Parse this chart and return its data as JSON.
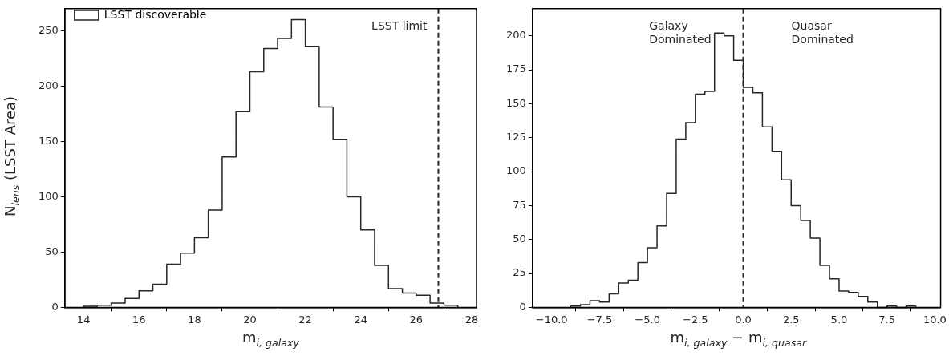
{
  "chart_data": [
    {
      "type": "histogram",
      "xlabel": "m$_{i, galaxy}$",
      "ylabel": "N$_{lens}$ (LSST Area)",
      "bins": [
        14,
        14.5,
        15,
        15.5,
        16,
        16.5,
        17,
        17.5,
        18,
        18.5,
        19,
        19.5,
        20,
        20.5,
        21,
        21.5,
        22,
        22.5,
        23,
        23.5,
        24,
        24.5,
        25,
        25.5,
        26,
        26.5,
        27,
        27.5
      ],
      "series": [
        {
          "name": "LSST discoverable",
          "color": "#262626",
          "values": [
            1,
            2,
            4,
            8,
            15,
            21,
            39,
            49,
            63,
            88,
            136,
            177,
            213,
            234,
            243,
            260,
            236,
            181,
            152,
            100,
            70,
            38,
            17,
            13,
            11,
            4,
            2
          ]
        }
      ],
      "xlim": [
        13.325,
        28.175
      ],
      "xticks": [
        14,
        16,
        18,
        20,
        22,
        24,
        26,
        28
      ],
      "ylim": [
        0,
        270
      ],
      "yticks": [
        0,
        50,
        100,
        150,
        200,
        250
      ],
      "ref_lines": [
        {
          "axis": "x",
          "value": 26.8,
          "label": "LSST limit",
          "color": "#262626",
          "line_style": "dashed"
        }
      ],
      "legend": "top left",
      "grid": false
    },
    {
      "type": "histogram",
      "xlabel": "m$_{i, galaxy}$ − m$_{i, quasar}$",
      "bins": [
        -9,
        -8.5,
        -8,
        -7.5,
        -7,
        -6.5,
        -6,
        -5.5,
        -5,
        -4.5,
        -4,
        -3.5,
        -3,
        -2.5,
        -2,
        -1.5,
        -1,
        -0.5,
        0,
        0.5,
        1,
        1.5,
        2,
        2.5,
        3,
        3.5,
        4,
        4.5,
        5,
        5.5,
        6,
        6.5,
        7,
        7.5,
        8,
        8.5,
        9
      ],
      "values": [
        1,
        2,
        5,
        4,
        10,
        18,
        20,
        33,
        44,
        60,
        84,
        124,
        136,
        157,
        159,
        202,
        200,
        182,
        162,
        158,
        133,
        115,
        94,
        75,
        64,
        51,
        31,
        21,
        12,
        11,
        8,
        4,
        0,
        1,
        0,
        1
      ],
      "color": "#262626",
      "xlim": [
        -11,
        10.3
      ],
      "xticks": [
        {
          "value": -10,
          "label": "−10.0"
        },
        {
          "value": -7.5,
          "label": "−7.5"
        },
        {
          "value": -5,
          "label": "−5.0"
        },
        {
          "value": -2.5,
          "label": "−2.5"
        },
        {
          "value": 0,
          "label": "0.0"
        },
        {
          "value": 2.5,
          "label": "2.5"
        },
        {
          "value": 5,
          "label": "5.0"
        },
        {
          "value": 7.5,
          "label": "7.5"
        },
        {
          "value": 10,
          "label": "10.0"
        }
      ],
      "ylim": [
        0,
        220
      ],
      "yticks": [
        0,
        25,
        50,
        75,
        100,
        125,
        150,
        175,
        200
      ],
      "ref_lines": [
        {
          "axis": "x",
          "value": 0,
          "color": "#262626",
          "line_style": "dashed"
        }
      ],
      "annotations": [
        "Galaxy\nDominated",
        "Quasar\nDominated"
      ],
      "grid": false
    }
  ]
}
